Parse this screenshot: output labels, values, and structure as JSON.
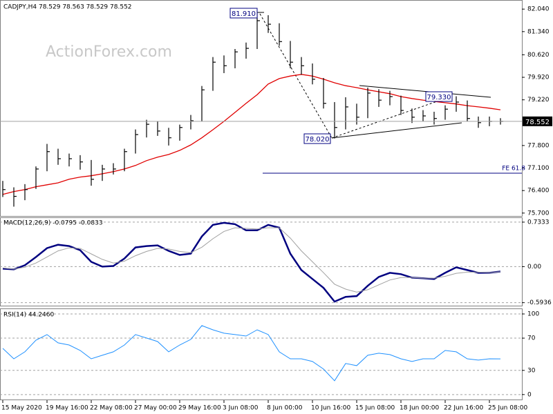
{
  "chart_data": [
    {
      "type": "ohlc",
      "title": "CADJPY,H4  78.529 78.563 78.529 78.552",
      "watermark": "ActionForex.com",
      "color": "#000000",
      "high": [
        76.7,
        76.5,
        76.6,
        77.15,
        77.85,
        77.7,
        77.55,
        77.5,
        77.35,
        77.2,
        77.25,
        77.7,
        78.3,
        78.6,
        78.55,
        78.35,
        78.45,
        78.75,
        79.65,
        80.55,
        80.6,
        80.8,
        81.0,
        81.91,
        81.85,
        81.6,
        81.05,
        80.55,
        80.35,
        79.9,
        79.15,
        79.3,
        79.1,
        79.6,
        79.55,
        79.5,
        79.35,
        78.95,
        78.9,
        78.85,
        79.05,
        79.33,
        79.2,
        78.7,
        78.7,
        78.65
      ],
      "low": [
        76.2,
        75.9,
        76.1,
        76.45,
        77.0,
        77.2,
        77.15,
        77.05,
        76.55,
        76.7,
        76.9,
        77.0,
        77.55,
        78.05,
        78.1,
        77.8,
        77.95,
        78.3,
        78.55,
        79.5,
        80.05,
        80.2,
        80.5,
        80.8,
        81.3,
        80.9,
        80.2,
        80.0,
        79.7,
        78.95,
        78.02,
        78.3,
        78.45,
        78.65,
        79.0,
        79.05,
        78.75,
        78.5,
        78.55,
        78.45,
        78.6,
        78.85,
        78.55,
        78.35,
        78.4,
        78.45
      ],
      "close": [
        76.43,
        76.22,
        76.43,
        77.07,
        77.61,
        77.39,
        77.39,
        77.29,
        76.75,
        77.07,
        77.07,
        77.61,
        78.14,
        78.46,
        78.25,
        78.04,
        78.36,
        78.57,
        79.53,
        80.39,
        80.28,
        80.71,
        80.82,
        81.68,
        81.57,
        81.03,
        80.39,
        80.28,
        79.86,
        79.11,
        78.36,
        79.0,
        78.68,
        79.43,
        79.21,
        79.32,
        78.89,
        78.68,
        78.72,
        78.64,
        78.93,
        79.15,
        78.64,
        78.51,
        78.55,
        78.55
      ],
      "series": [
        {
          "color": "#e00000",
          "values": [
            76.28,
            76.37,
            76.43,
            76.52,
            76.58,
            76.64,
            76.75,
            76.82,
            76.86,
            76.92,
            76.99,
            77.07,
            77.18,
            77.33,
            77.44,
            77.52,
            77.65,
            77.82,
            78.04,
            78.29,
            78.55,
            78.83,
            79.11,
            79.38,
            79.71,
            79.88,
            79.96,
            80.01,
            79.96,
            79.86,
            79.75,
            79.66,
            79.6,
            79.53,
            79.47,
            79.41,
            79.32,
            79.26,
            79.21,
            79.17,
            79.13,
            79.09,
            79.04,
            79.0,
            78.96,
            78.91
          ]
        }
      ],
      "ylim": [
        75.61,
        82.28
      ],
      "yticks": [
        {
          "value": 82.04,
          "label": "82.040"
        },
        {
          "value": 81.34,
          "label": "81.340"
        },
        {
          "value": 80.62,
          "label": "80.620"
        },
        {
          "value": 79.92,
          "label": "79.920"
        },
        {
          "value": 79.22,
          "label": "79.220"
        },
        {
          "value": 77.8,
          "label": "77.800"
        },
        {
          "value": 77.1,
          "label": "77.100"
        },
        {
          "value": 76.4,
          "label": "76.400"
        },
        {
          "value": 75.7,
          "label": "75.700"
        }
      ],
      "last_value": 78.552,
      "annotations": [
        "81.910",
        "78.020",
        "79.330",
        "FE 61.8"
      ]
    },
    {
      "type": "line",
      "title": "MACD(12,26,9) -0.0795 -0.0833",
      "series": [
        {
          "color": "#000080",
          "values": [
            -0.034,
            -0.045,
            0.023,
            0.158,
            0.305,
            0.361,
            0.339,
            0.271,
            0.079,
            0.0,
            0.011,
            0.135,
            0.316,
            0.339,
            0.35,
            0.26,
            0.192,
            0.214,
            0.497,
            0.688,
            0.722,
            0.7,
            0.598,
            0.598,
            0.688,
            0.643,
            0.214,
            -0.056,
            -0.203,
            -0.35,
            -0.576,
            -0.497,
            -0.485,
            -0.316,
            -0.169,
            -0.102,
            -0.124,
            -0.181,
            -0.192,
            -0.203,
            -0.102,
            -0.011,
            -0.056,
            -0.102,
            -0.102,
            -0.08
          ]
        },
        {
          "color": "#a0a0a0",
          "values": [
            -0.02,
            -0.04,
            -0.01,
            0.06,
            0.16,
            0.26,
            0.31,
            0.3,
            0.21,
            0.12,
            0.06,
            0.09,
            0.18,
            0.25,
            0.3,
            0.29,
            0.25,
            0.23,
            0.32,
            0.46,
            0.58,
            0.64,
            0.63,
            0.62,
            0.64,
            0.64,
            0.47,
            0.26,
            0.08,
            -0.1,
            -0.29,
            -0.37,
            -0.42,
            -0.38,
            -0.3,
            -0.22,
            -0.18,
            -0.18,
            -0.19,
            -0.19,
            -0.16,
            -0.11,
            -0.09,
            -0.09,
            -0.1,
            -0.083
          ]
        }
      ],
      "ylim": [
        -0.643,
        0.812
      ],
      "yticks": [
        0.7333,
        {
          "value": 0,
          "label": "0.00"
        },
        -0.5936
      ],
      "grid": true
    },
    {
      "type": "line",
      "title": "RSI(14) 44.2460",
      "series": [
        {
          "color": "#1e90ff",
          "values": [
            57.3,
            44.4,
            53.0,
            67.5,
            74.4,
            64.1,
            61.5,
            54.7,
            44.4,
            48.7,
            53.0,
            61.5,
            74.4,
            70.1,
            65.8,
            53.0,
            61.5,
            68.4,
            85.5,
            80.3,
            76.1,
            74.4,
            72.6,
            80.3,
            74.4,
            53.0,
            44.4,
            44.4,
            41.0,
            31.6,
            17.1,
            38.5,
            35.9,
            48.7,
            51.3,
            49.6,
            44.4,
            41.0,
            44.4,
            44.4,
            54.7,
            53.0,
            44.4,
            42.7,
            44.4,
            44.25
          ]
        }
      ],
      "ylim": [
        -7,
        106
      ],
      "yticks": [
        100,
        70,
        30,
        0
      ],
      "grid": true,
      "categories": [
        "15 May 2020",
        null,
        null,
        null,
        "19 May 16:00",
        null,
        null,
        null,
        "22 May 08:00",
        null,
        null,
        null,
        "27 May 00:00",
        null,
        null,
        null,
        "29 May 16:00",
        null,
        null,
        null,
        "3 Jun 08:00",
        null,
        null,
        null,
        "8 Jun 00:00",
        null,
        null,
        null,
        "10 Jun 16:00",
        null,
        null,
        null,
        "15 Jun 08:00",
        null,
        null,
        null,
        "18 Jun 00:00",
        null,
        null,
        null,
        "22 Jun 16:00",
        null,
        null,
        null,
        "25 Jun 08:00",
        null
      ]
    }
  ]
}
